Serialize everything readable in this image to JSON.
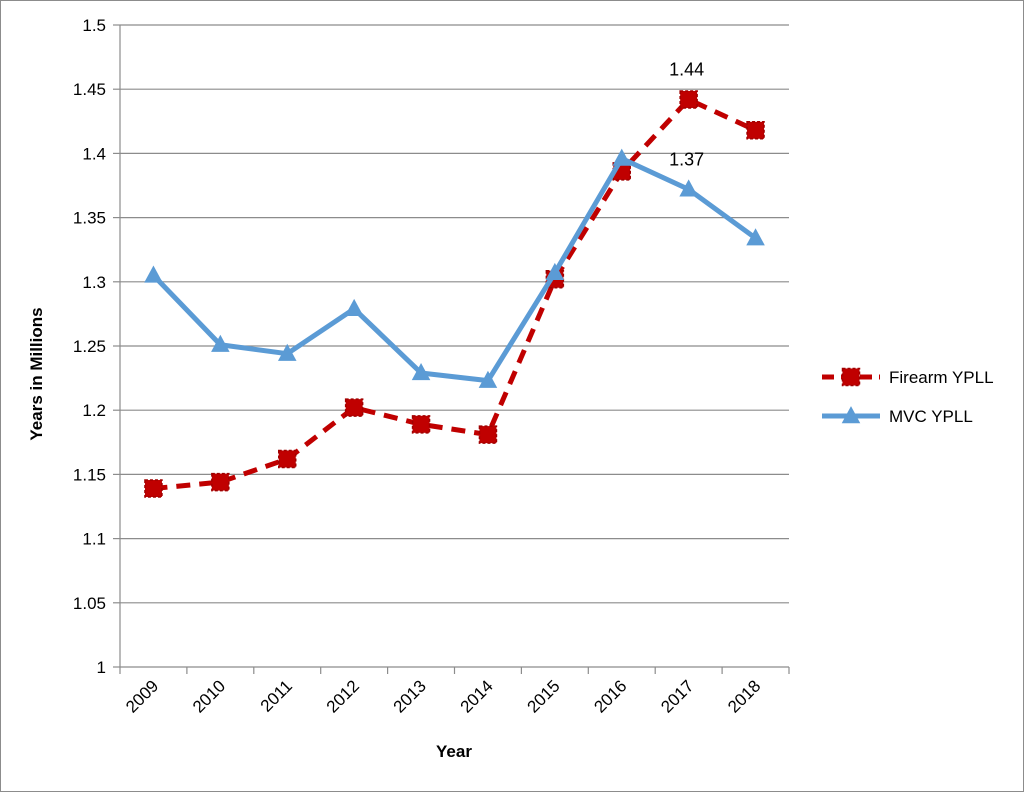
{
  "chart_data": {
    "type": "line",
    "title": "",
    "xlabel": "Year",
    "ylabel": "Years in Millions",
    "categories": [
      "2009",
      "2010",
      "2011",
      "2012",
      "2013",
      "2014",
      "2015",
      "2016",
      "2017",
      "2018"
    ],
    "ylim": [
      1,
      1.5
    ],
    "yticks": [
      "1",
      "1.05",
      "1.1",
      "1.15",
      "1.2",
      "1.25",
      "1.3",
      "1.35",
      "1.4",
      "1.45",
      "1.5"
    ],
    "grid": "horizontal",
    "legend_position": "right",
    "series": [
      {
        "name": "Firearm YPLL",
        "color": "#c00000",
        "line_style": "dashed",
        "marker": "square",
        "values": [
          1.139,
          1.144,
          1.162,
          1.202,
          1.189,
          1.181,
          1.302,
          1.386,
          1.442,
          1.418
        ]
      },
      {
        "name": "MVC YPLL",
        "color": "#5b9bd5",
        "line_style": "solid",
        "marker": "triangle",
        "values": [
          1.305,
          1.251,
          1.244,
          1.279,
          1.229,
          1.223,
          1.307,
          1.396,
          1.372,
          1.334
        ]
      }
    ],
    "annotations": [
      {
        "series": 0,
        "index": 8,
        "text": "1.44"
      },
      {
        "series": 1,
        "index": 8,
        "text": "1.37"
      }
    ]
  }
}
